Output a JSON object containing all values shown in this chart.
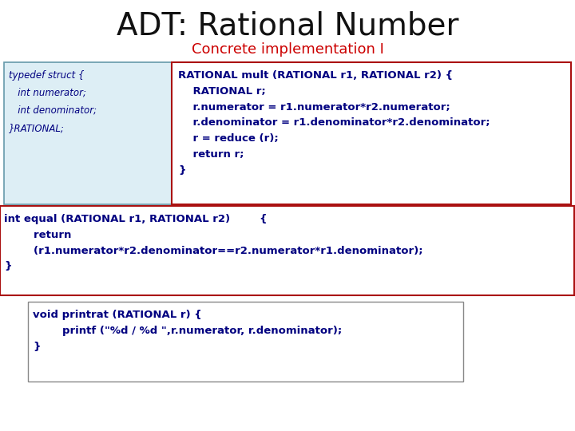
{
  "title": "ADT: Rational Number",
  "subtitle": "Concrete implementation I",
  "title_color": "#111111",
  "subtitle_color": "#cc0000",
  "bg_color": "#ffffff",
  "code_color": "#000080",
  "box1_bg": "#ddeef5",
  "box1_border": "#6699aa",
  "box2_border": "#aa1111",
  "box3_border": "#aa1111",
  "box4_border": "#888888",
  "typedef_lines": [
    "typedef struct {",
    "   int numerator;",
    "   int denominator;",
    "}RATIONAL;"
  ],
  "mult_lines": [
    "RATIONAL mult (RATIONAL r1, RATIONAL r2) {",
    "    RATIONAL r;",
    "    r.numerator = r1.numerator*r2.numerator;",
    "    r.denominator = r1.denominator*r2.denominator;",
    "    r = reduce (r);",
    "    return r;",
    "}"
  ],
  "equal_lines": [
    "int equal (RATIONAL r1, RATIONAL r2)        {",
    "        return",
    "        (r1.numerator*r2.denominator==r2.numerator*r1.denominator);",
    "}"
  ],
  "print_lines": [
    "void printrat (RATIONAL r) {",
    "        printf (\"%d / %d \",r.numerator, r.denominator);",
    "}"
  ],
  "title_fontsize": 28,
  "subtitle_fontsize": 13,
  "code_fontsize": 8.5,
  "code_fontsize_large": 9.5
}
